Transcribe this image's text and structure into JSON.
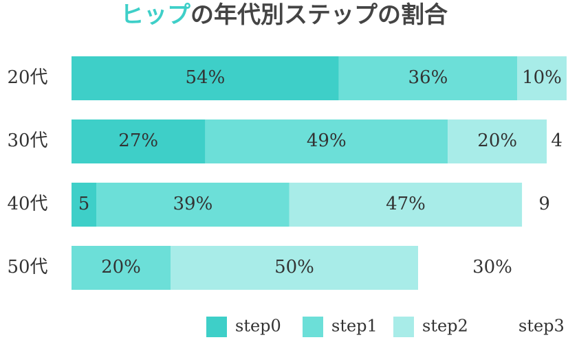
{
  "chart_data": {
    "type": "stacked-bar-horizontal",
    "title": [
      "ヒップ",
      "の年代別ステップの割合"
    ],
    "categories": [
      "20代",
      "30代",
      "40代",
      "50代"
    ],
    "xlim": [
      0,
      100
    ],
    "series": [
      {
        "name": "step0",
        "color": "#3ecfc8",
        "values": [
          54,
          27,
          5,
          0
        ],
        "value_labels": [
          "54%",
          "27%",
          "5",
          null
        ]
      },
      {
        "name": "step1",
        "color": "#6cdfd8",
        "values": [
          36,
          49,
          39,
          20
        ],
        "value_labels": [
          "36%",
          "49%",
          "39%",
          "20%"
        ]
      },
      {
        "name": "step2",
        "color": "#a8ece8",
        "values": [
          10,
          20,
          47,
          50
        ],
        "value_labels": [
          "10%",
          "20%",
          "47%",
          "50%"
        ]
      },
      {
        "name": "step3",
        "color": "#ffffff",
        "values": [
          0,
          4,
          9,
          30
        ],
        "value_labels": [
          null,
          "4",
          "9",
          "30%"
        ]
      }
    ]
  }
}
